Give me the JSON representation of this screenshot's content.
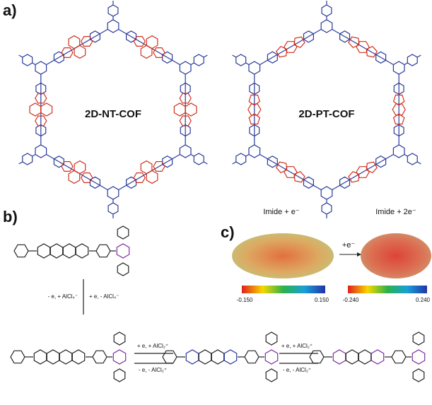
{
  "panel_a": {
    "label": "a)",
    "cofs": [
      {
        "name": "2D-NT-COF"
      },
      {
        "name": "2D-PT-COF"
      }
    ]
  },
  "panel_b": {
    "label": "b)",
    "arrows": [
      {
        "top": "- e, + AlCl₄⁻",
        "bottom": "+ e, - AlCl₄⁻"
      },
      {
        "top": "+ e, + AlCl₂⁺",
        "bottom": "- e, - AlCl₂⁺"
      },
      {
        "top": "+ e, + AlCl₂⁺",
        "bottom": "- e, - AlCl₂⁺"
      }
    ]
  },
  "panel_c": {
    "label": "c)",
    "arrow": "+e⁻",
    "maps": [
      {
        "title": "Imide + e⁻",
        "min": "-0.150",
        "max": "0.150"
      },
      {
        "title": "Imide + 2e⁻",
        "min": "-0.240",
        "max": "0.240"
      }
    ]
  }
}
